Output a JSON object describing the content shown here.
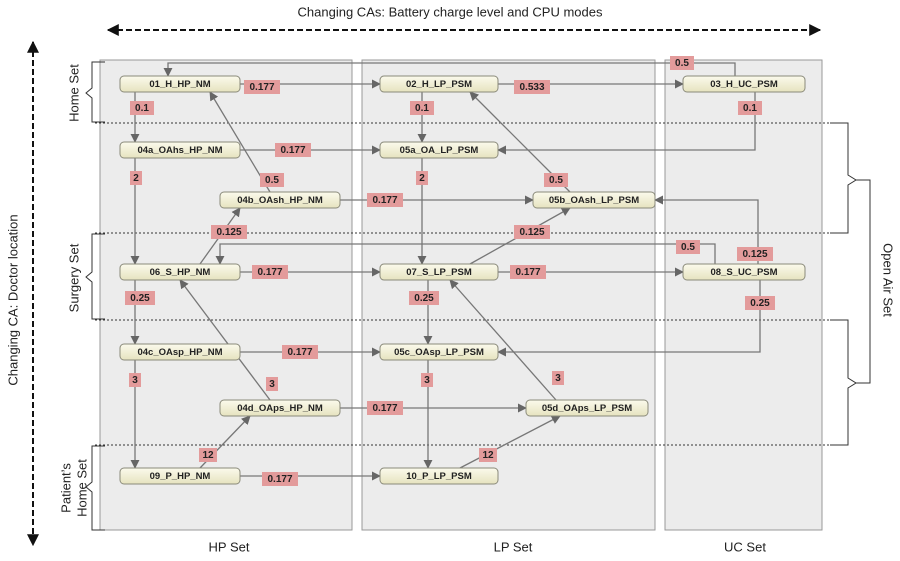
{
  "header": {
    "top": "Changing CAs: Battery charge level and CPU modes",
    "left": "Changing CA: Doctor location",
    "right": "Open Air Set"
  },
  "column_sets": [
    "HP Set",
    "LP Set",
    "UC Set"
  ],
  "row_sets": [
    {
      "lines": [
        "Home Set"
      ]
    },
    {
      "lines": [
        "Surgery Set"
      ]
    },
    {
      "lines": [
        "Patient’s",
        "Home Set"
      ]
    }
  ],
  "nodes": [
    {
      "label": "01_H_HP_NM"
    },
    {
      "label": "02_H_LP_PSM"
    },
    {
      "label": "03_H_UC_PSM"
    },
    {
      "label": "04a_OAhs_HP_NM"
    },
    {
      "label": "05a_OA_LP_PSM"
    },
    {
      "label": "04b_OAsh_HP_NM"
    },
    {
      "label": "05b_OAsh_LP_PSM"
    },
    {
      "label": "06_S_HP_NM"
    },
    {
      "label": "07_S_LP_PSM"
    },
    {
      "label": "08_S_UC_PSM"
    },
    {
      "label": "04c_OAsp_HP_NM"
    },
    {
      "label": "05c_OAsp_LP_PSM"
    },
    {
      "label": "04d_OAps_HP_NM"
    },
    {
      "label": "05d_OAps_LP_PSM"
    },
    {
      "label": "09_P_HP_NM"
    },
    {
      "label": "10_P_LP_PSM"
    }
  ],
  "edge_labels": [
    "0.177",
    "0.533",
    "0.5",
    "0.1",
    "0.1",
    "0.1",
    "0.177",
    "0.5",
    "2",
    "2",
    "0.5",
    "0.177",
    "0.125",
    "0.125",
    "0.5",
    "0.125",
    "0.177",
    "0.177",
    "0.25",
    "0.25",
    "0.25",
    "0.177",
    "3",
    "3",
    "3",
    "3",
    "0.177",
    "12",
    "12",
    "0.177"
  ]
}
